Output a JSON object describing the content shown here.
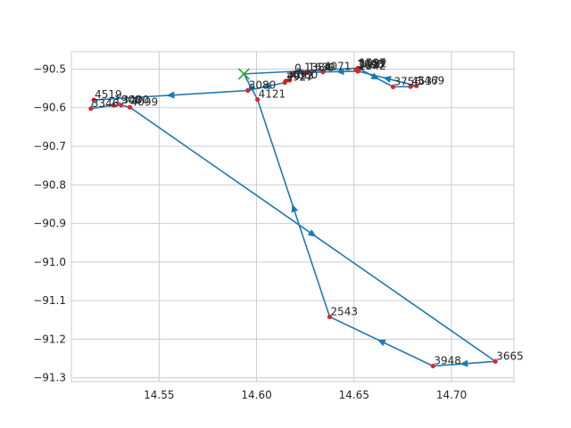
{
  "chart_data": {
    "type": "line",
    "title": "",
    "xlabel": "",
    "ylabel": "",
    "xlim": [
      14.505,
      14.732
    ],
    "ylim": [
      -91.31,
      -90.455
    ],
    "x_ticks": [
      14.55,
      14.6,
      14.65,
      14.7
    ],
    "y_ticks": [
      -90.5,
      -90.6,
      -90.7,
      -90.8,
      -90.9,
      -91.0,
      -91.1,
      -91.2,
      -91.3
    ],
    "x_tick_labels": [
      "14.55",
      "14.60",
      "14.65",
      "14.70"
    ],
    "y_tick_labels": [
      "−90.5",
      "−90.6",
      "−90.7",
      "−90.8",
      "−90.9",
      "−91.0",
      "−91.1",
      "−91.2",
      "−91.3"
    ],
    "grid": true,
    "colors": {
      "line": "#1f77b4",
      "point": "#d62728",
      "start_marker": "#2ca02c",
      "grid": "#cccccc"
    },
    "start_marker": {
      "x": 14.5935,
      "y": -90.5125,
      "symbol": "x"
    },
    "route": [
      {
        "label": "",
        "x": 14.5935,
        "y": -90.5125
      },
      {
        "label": "1597",
        "x": 14.652,
        "y": -90.4975
      },
      {
        "label": "3756",
        "x": 14.67,
        "y": -90.546
      },
      {
        "label": "4537",
        "x": 14.679,
        "y": -90.5455
      },
      {
        "label": "3469",
        "x": 14.682,
        "y": -90.5435
      },
      {
        "label": "1342",
        "x": 14.652,
        "y": -90.5055
      },
      {
        "label": "4071",
        "x": 14.634,
        "y": -90.5075
      },
      {
        "label": "1384",
        "x": 14.624,
        "y": -90.5095
      },
      {
        "label": "0",
        "x": 14.619,
        "y": -90.5115
      },
      {
        "label": "4093",
        "x": 14.615,
        "y": -90.531
      },
      {
        "label": "3927",
        "x": 14.6145,
        "y": -90.535
      },
      {
        "label": "3080",
        "x": 14.5955,
        "y": -90.5555
      },
      {
        "label": "4519",
        "x": 14.5165,
        "y": -90.58
      },
      {
        "label": "3346",
        "x": 14.515,
        "y": -90.6025
      },
      {
        "label": "1908",
        "x": 14.5265,
        "y": -90.5935
      },
      {
        "label": "3400",
        "x": 14.5305,
        "y": -90.5935
      },
      {
        "label": "4099",
        "x": 14.535,
        "y": -90.599
      },
      {
        "label": "3665",
        "x": 14.7225,
        "y": -91.2575
      },
      {
        "label": "3948",
        "x": 14.6905,
        "y": -91.2695
      },
      {
        "label": "2543",
        "x": 14.6375,
        "y": -91.142
      },
      {
        "label": "4121",
        "x": 14.6005,
        "y": -90.579
      },
      {
        "label": "",
        "x": 14.5935,
        "y": -90.5125
      }
    ],
    "extra_points": [
      {
        "label": "4050",
        "x": 14.617,
        "y": -90.529
      },
      {
        "label": "1639",
        "x": 14.626,
        "y": -90.509
      },
      {
        "label": "1082",
        "x": 14.6525,
        "y": -90.4995
      },
      {
        "label": "1098",
        "x": 14.651,
        "y": -90.5015
      },
      {
        "label": "3697",
        "x": 14.6515,
        "y": -90.5035
      }
    ]
  }
}
